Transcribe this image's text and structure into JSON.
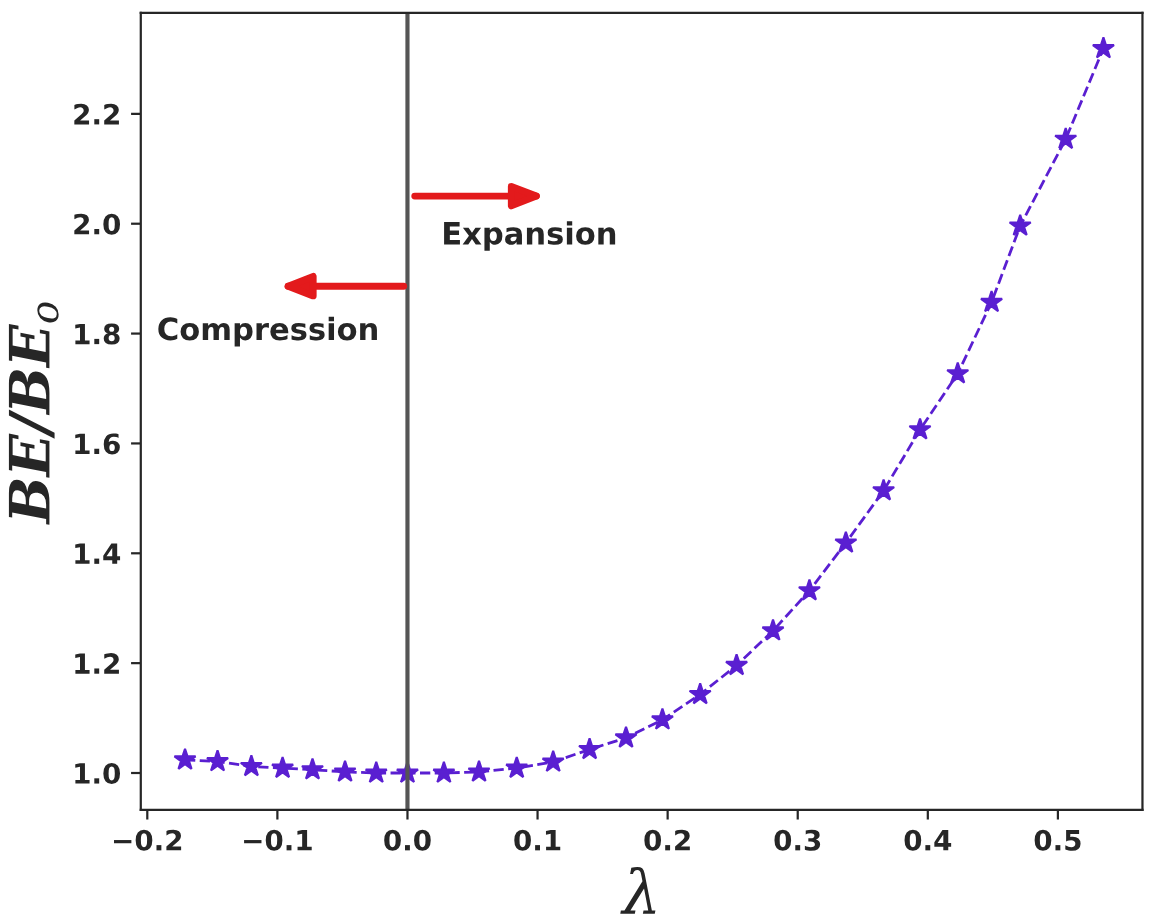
{
  "chart_data": {
    "type": "line",
    "xlabel": "λ",
    "ylabel": "BE/BE$_{o}$",
    "x": [
      -0.171,
      -0.146,
      -0.12,
      -0.096,
      -0.073,
      -0.048,
      -0.024,
      0.0,
      0.028,
      0.055,
      0.084,
      0.112,
      0.14,
      0.168,
      0.196,
      0.225,
      0.253,
      0.281,
      0.309,
      0.337,
      0.366,
      0.394,
      0.423,
      0.449,
      0.471,
      0.506,
      0.535
    ],
    "series": [
      {
        "color": "#5a1fd1",
        "values": [
          1.024,
          1.021,
          1.012,
          1.009,
          1.006,
          1.002,
          1.0,
          1.0,
          1.0,
          1.002,
          1.009,
          1.02,
          1.043,
          1.064,
          1.097,
          1.143,
          1.196,
          1.259,
          1.332,
          1.419,
          1.514,
          1.625,
          1.727,
          1.857,
          1.996,
          2.154,
          2.319
        ]
      }
    ],
    "marker": "star",
    "line_style": "dashed",
    "grid": false,
    "legend": false,
    "xlim": [
      -0.205,
      0.565
    ],
    "ylim": [
      0.933,
      2.384
    ],
    "xticks": [
      {
        "value": -0.2,
        "label": "−0.2"
      },
      {
        "value": -0.1,
        "label": "−0.1"
      },
      {
        "value": 0.0,
        "label": "0.0"
      },
      0.1,
      0.2,
      0.3,
      0.4,
      0.5
    ],
    "yticks": [
      {
        "value": 1.0,
        "label": "1.0"
      },
      1.2,
      1.4,
      1.6,
      1.8,
      {
        "value": 2.0,
        "label": "2.0"
      },
      2.2
    ],
    "ref_lines": [
      {
        "axis": "x",
        "value": 0.0,
        "color": "#555555"
      }
    ],
    "annotations": [
      "Expansion",
      "Compression"
    ]
  }
}
